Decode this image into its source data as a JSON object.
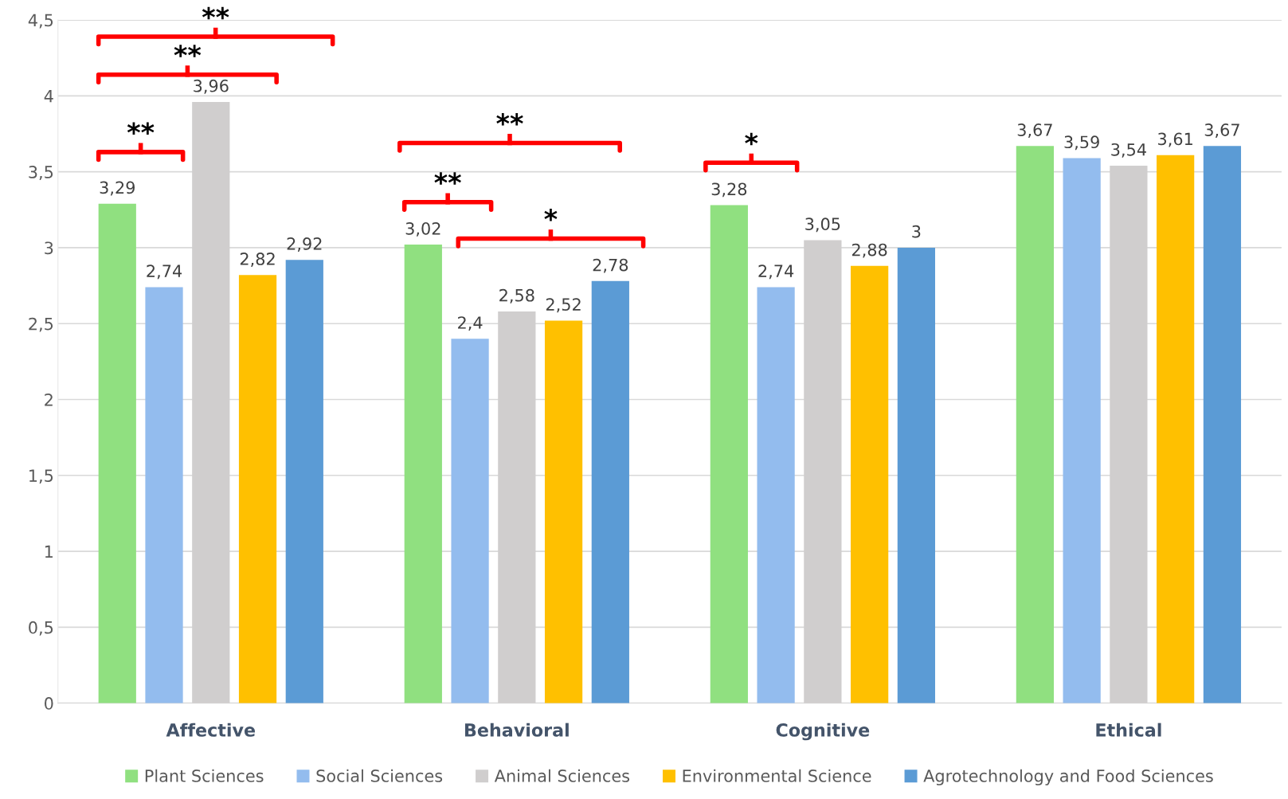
{
  "chart_data": {
    "type": "bar",
    "categories": [
      "Affective",
      "Behavioral",
      "Cognitive",
      "Ethical"
    ],
    "series": [
      {
        "name": "Plant Sciences",
        "color": "#90e080",
        "values": [
          3.29,
          3.02,
          3.28,
          3.67
        ],
        "value_labels": [
          "3,29",
          "3,02",
          "3,28",
          "3,67"
        ]
      },
      {
        "name": "Social Sciences",
        "color": "#93bcee",
        "values": [
          2.74,
          2.4,
          2.74,
          3.59
        ],
        "value_labels": [
          "2,74",
          "2,4",
          "2,74",
          "3,59"
        ]
      },
      {
        "name": "Animal Sciences",
        "color": "#d0cece",
        "values": [
          3.96,
          2.58,
          3.05,
          3.54
        ],
        "value_labels": [
          "3,96",
          "2,58",
          "3,05",
          "3,54"
        ]
      },
      {
        "name": "Environmental Science",
        "color": "#ffc000",
        "values": [
          2.82,
          2.52,
          2.88,
          3.61
        ],
        "value_labels": [
          "2,82",
          "2,52",
          "2,88",
          "3,61"
        ]
      },
      {
        "name": "Agrotechnology and Food Sciences",
        "color": "#5b9bd5",
        "values": [
          2.92,
          2.78,
          3,
          3.67
        ],
        "value_labels": [
          "2,92",
          "2,78",
          "3",
          "3,67"
        ]
      }
    ],
    "ylim": [
      0,
      4.5
    ],
    "yticks": [
      0,
      {
        "value": 0.5,
        "label": "0,5"
      },
      1,
      {
        "value": 1.5,
        "label": "1,5"
      },
      2,
      {
        "value": 2.5,
        "label": "2,5"
      },
      3,
      {
        "value": 3.5,
        "label": "3,5"
      },
      4,
      {
        "value": 4.5,
        "label": "4,5"
      }
    ],
    "grid": "y",
    "legend": "bottom",
    "annotations": [
      "**",
      "**",
      "**",
      "**",
      "**",
      "*",
      "*"
    ]
  }
}
